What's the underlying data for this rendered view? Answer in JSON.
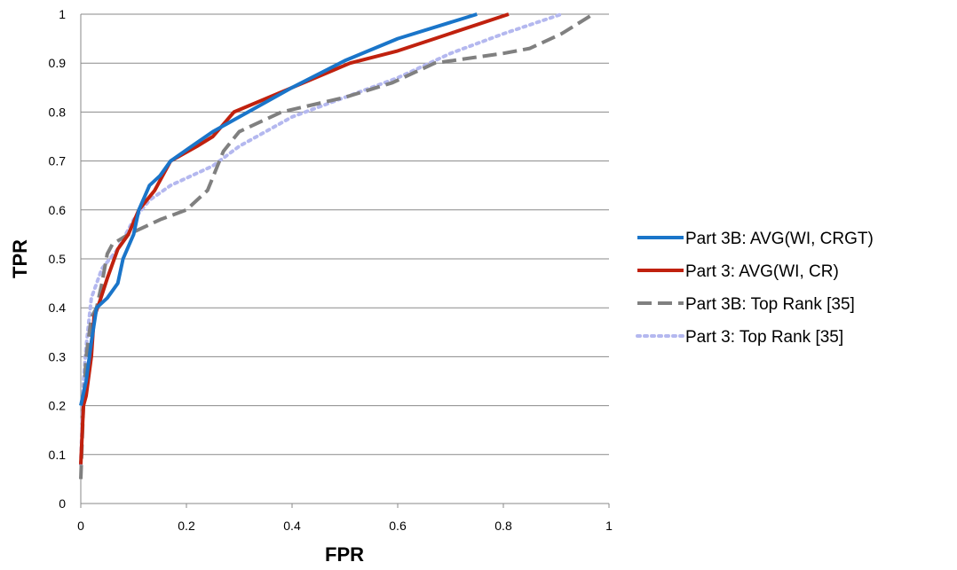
{
  "chart_data": {
    "type": "line",
    "xlabel": "FPR",
    "ylabel": "TPR",
    "xlim": [
      0,
      1
    ],
    "ylim": [
      0,
      1
    ],
    "x_ticks": [
      "0",
      "0.2",
      "0.4",
      "0.6",
      "0.8",
      "1"
    ],
    "y_ticks": [
      "0",
      "0.1",
      "0.2",
      "0.3",
      "0.4",
      "0.5",
      "0.6",
      "0.7",
      "0.8",
      "0.9",
      "1"
    ],
    "grid": "horizontal",
    "legend_position": "right",
    "series": [
      {
        "name": "Part 3B: AVG(WI, CRGT)",
        "color": "#1a75c9",
        "style": "solid",
        "points": [
          [
            0,
            0.2
          ],
          [
            0.01,
            0.25
          ],
          [
            0.02,
            0.33
          ],
          [
            0.03,
            0.4
          ],
          [
            0.05,
            0.42
          ],
          [
            0.07,
            0.45
          ],
          [
            0.08,
            0.5
          ],
          [
            0.1,
            0.55
          ],
          [
            0.11,
            0.6
          ],
          [
            0.13,
            0.65
          ],
          [
            0.15,
            0.67
          ],
          [
            0.17,
            0.7
          ],
          [
            0.21,
            0.73
          ],
          [
            0.25,
            0.76
          ],
          [
            0.3,
            0.79
          ],
          [
            0.4,
            0.85
          ],
          [
            0.5,
            0.905
          ],
          [
            0.6,
            0.95
          ],
          [
            0.75,
            1.0
          ]
        ]
      },
      {
        "name": "Part 3: AVG(WI, CR)",
        "color": "#c0210e",
        "style": "solid",
        "points": [
          [
            0,
            0.08
          ],
          [
            0.005,
            0.2
          ],
          [
            0.01,
            0.22
          ],
          [
            0.02,
            0.3
          ],
          [
            0.025,
            0.38
          ],
          [
            0.035,
            0.41
          ],
          [
            0.05,
            0.46
          ],
          [
            0.07,
            0.52
          ],
          [
            0.09,
            0.55
          ],
          [
            0.11,
            0.6
          ],
          [
            0.14,
            0.64
          ],
          [
            0.17,
            0.7
          ],
          [
            0.22,
            0.73
          ],
          [
            0.25,
            0.75
          ],
          [
            0.29,
            0.8
          ],
          [
            0.4,
            0.85
          ],
          [
            0.51,
            0.9
          ],
          [
            0.6,
            0.925
          ],
          [
            0.67,
            0.95
          ],
          [
            0.81,
            1.0
          ]
        ]
      },
      {
        "name": "Part 3B: Top Rank [35]",
        "color": "#808080",
        "style": "dashed",
        "points": [
          [
            0,
            0.05
          ],
          [
            0.005,
            0.2
          ],
          [
            0.01,
            0.3
          ],
          [
            0.02,
            0.38
          ],
          [
            0.03,
            0.4
          ],
          [
            0.04,
            0.45
          ],
          [
            0.05,
            0.51
          ],
          [
            0.06,
            0.53
          ],
          [
            0.09,
            0.55
          ],
          [
            0.15,
            0.58
          ],
          [
            0.2,
            0.6
          ],
          [
            0.24,
            0.64
          ],
          [
            0.27,
            0.72
          ],
          [
            0.3,
            0.76
          ],
          [
            0.38,
            0.8
          ],
          [
            0.5,
            0.83
          ],
          [
            0.59,
            0.86
          ],
          [
            0.67,
            0.9
          ],
          [
            0.8,
            0.92
          ],
          [
            0.85,
            0.93
          ],
          [
            0.91,
            0.96
          ],
          [
            0.97,
            1.0
          ]
        ]
      },
      {
        "name": "Part 3: Top Rank [35]",
        "color": "#b4b8ef",
        "style": "dotted",
        "points": [
          [
            0,
            0.08
          ],
          [
            0.005,
            0.25
          ],
          [
            0.01,
            0.32
          ],
          [
            0.02,
            0.42
          ],
          [
            0.04,
            0.48
          ],
          [
            0.07,
            0.52
          ],
          [
            0.1,
            0.58
          ],
          [
            0.13,
            0.62
          ],
          [
            0.17,
            0.65
          ],
          [
            0.25,
            0.69
          ],
          [
            0.3,
            0.73
          ],
          [
            0.4,
            0.79
          ],
          [
            0.5,
            0.83
          ],
          [
            0.6,
            0.87
          ],
          [
            0.7,
            0.92
          ],
          [
            0.8,
            0.96
          ],
          [
            0.91,
            1.0
          ]
        ]
      }
    ]
  }
}
